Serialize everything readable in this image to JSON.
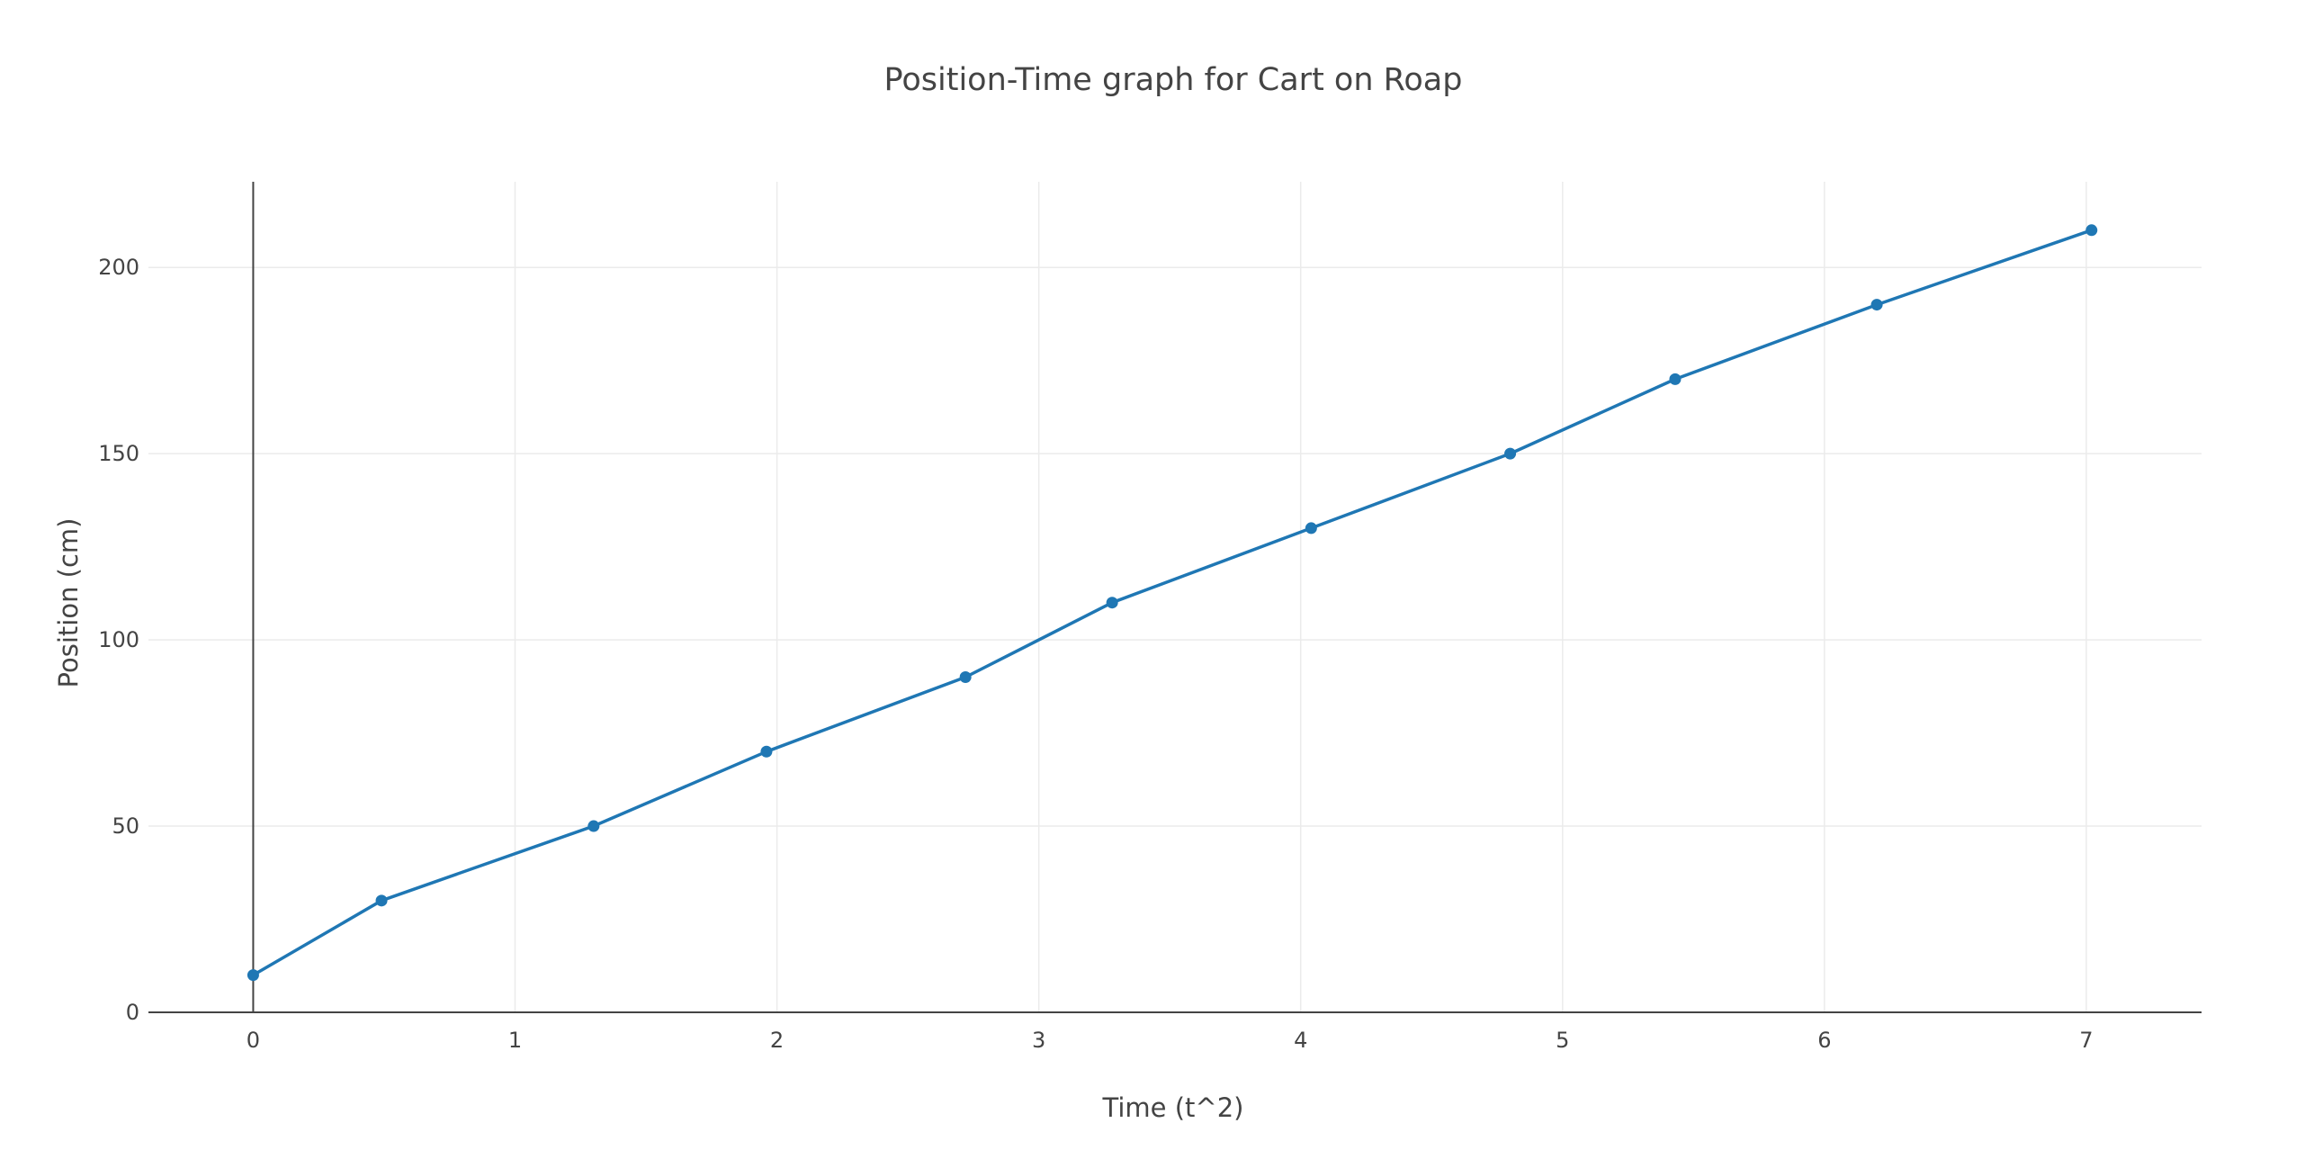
{
  "chart_data": {
    "type": "line",
    "title": "Position-Time graph for Cart on Roap",
    "xlabel": "Time (t^2)",
    "ylabel": "Position (cm)",
    "xlim": [
      -0.4,
      7.44
    ],
    "ylim": [
      0,
      223
    ],
    "x_ticks": [
      0,
      1,
      2,
      3,
      4,
      5,
      6,
      7
    ],
    "y_ticks": [
      0,
      50,
      100,
      150,
      200
    ],
    "grid": true,
    "legend": false,
    "series": [
      {
        "mode": "lines+markers",
        "color": "#1f77b4",
        "points": [
          {
            "x": 0,
            "y": 10
          },
          {
            "x": 0.49,
            "y": 30
          },
          {
            "x": 1.3,
            "y": 50
          },
          {
            "x": 1.96,
            "y": 70
          },
          {
            "x": 2.72,
            "y": 90
          },
          {
            "x": 3.28,
            "y": 110
          },
          {
            "x": 4.04,
            "y": 130
          },
          {
            "x": 4.8,
            "y": 150
          },
          {
            "x": 5.43,
            "y": 170
          },
          {
            "x": 6.2,
            "y": 190
          },
          {
            "x": 7.02,
            "y": 210
          }
        ]
      }
    ]
  }
}
